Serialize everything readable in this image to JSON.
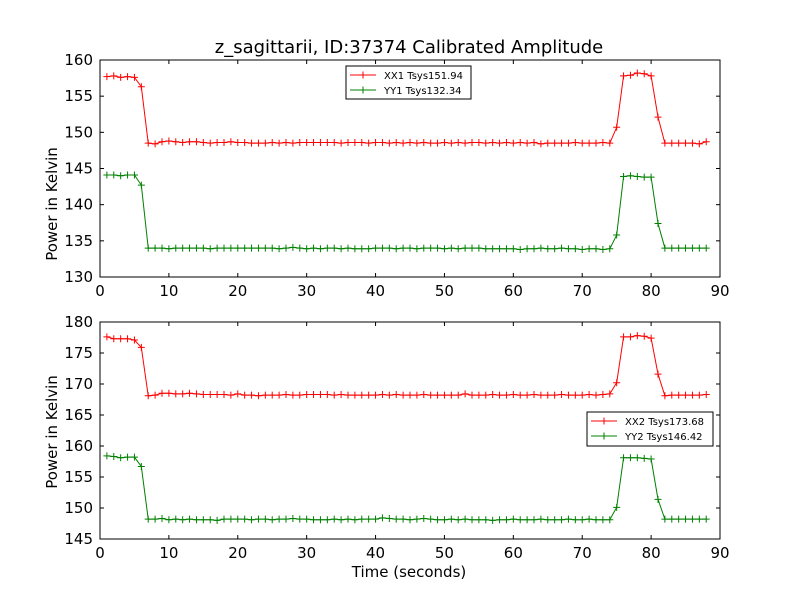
{
  "chart_data": [
    {
      "type": "line",
      "title": "z_sagittarii, ID:37374 Calibrated Amplitude",
      "xlabel": "",
      "ylabel": "Power in Kelvin",
      "xlim": [
        0,
        90
      ],
      "ylim": [
        130,
        160
      ],
      "xticks": [
        0,
        10,
        20,
        30,
        40,
        50,
        60,
        70,
        80,
        90
      ],
      "yticks": [
        130,
        135,
        140,
        145,
        150,
        155,
        160
      ],
      "legend_position": "upper-center",
      "x": [
        1,
        2,
        3,
        4,
        5,
        6,
        7,
        8,
        9,
        10,
        11,
        12,
        13,
        14,
        15,
        16,
        17,
        18,
        19,
        20,
        21,
        22,
        23,
        24,
        25,
        26,
        27,
        28,
        29,
        30,
        31,
        32,
        33,
        34,
        35,
        36,
        37,
        38,
        39,
        40,
        41,
        42,
        43,
        44,
        45,
        46,
        47,
        48,
        49,
        50,
        51,
        52,
        53,
        54,
        55,
        56,
        57,
        58,
        59,
        60,
        61,
        62,
        63,
        64,
        65,
        66,
        67,
        68,
        69,
        70,
        71,
        72,
        73,
        74,
        75,
        76,
        77,
        78,
        79,
        80,
        81,
        82,
        83,
        84,
        85,
        86,
        87,
        88
      ],
      "series": [
        {
          "name": "XX1 Tsys151.94",
          "color": "#ff0000",
          "values": [
            157.7,
            157.8,
            157.6,
            157.7,
            157.6,
            156.3,
            148.5,
            148.4,
            148.7,
            148.8,
            148.7,
            148.6,
            148.7,
            148.7,
            148.6,
            148.5,
            148.6,
            148.6,
            148.7,
            148.6,
            148.6,
            148.5,
            148.5,
            148.5,
            148.6,
            148.5,
            148.6,
            148.5,
            148.6,
            148.6,
            148.6,
            148.6,
            148.6,
            148.6,
            148.5,
            148.6,
            148.6,
            148.6,
            148.5,
            148.6,
            148.6,
            148.5,
            148.6,
            148.5,
            148.6,
            148.5,
            148.6,
            148.5,
            148.5,
            148.6,
            148.5,
            148.6,
            148.5,
            148.6,
            148.6,
            148.5,
            148.6,
            148.5,
            148.6,
            148.5,
            148.6,
            148.5,
            148.6,
            148.4,
            148.5,
            148.5,
            148.5,
            148.5,
            148.6,
            148.5,
            148.5,
            148.5,
            148.6,
            148.5,
            150.7,
            157.8,
            157.9,
            158.2,
            158.1,
            157.8,
            152.1,
            148.5,
            148.5,
            148.5,
            148.5,
            148.5,
            148.4,
            148.7
          ]
        },
        {
          "name": "YY1 Tsys132.34",
          "color": "#008000",
          "values": [
            144.1,
            144.1,
            144.0,
            144.1,
            144.1,
            142.7,
            134.0,
            134.0,
            134.0,
            133.9,
            134.0,
            134.0,
            134.0,
            134.0,
            134.0,
            133.9,
            134.0,
            134.0,
            134.0,
            134.0,
            134.0,
            134.0,
            134.0,
            134.0,
            134.0,
            133.9,
            134.0,
            134.1,
            134.0,
            133.9,
            134.0,
            133.9,
            134.0,
            134.0,
            133.9,
            134.0,
            133.9,
            133.9,
            133.9,
            134.0,
            134.0,
            134.0,
            133.9,
            134.0,
            134.0,
            133.9,
            134.0,
            134.0,
            134.0,
            133.9,
            134.0,
            133.9,
            134.0,
            134.0,
            134.0,
            133.9,
            133.9,
            133.9,
            133.9,
            133.9,
            133.8,
            133.9,
            133.9,
            134.0,
            133.9,
            133.9,
            134.0,
            133.9,
            133.9,
            133.8,
            133.9,
            133.9,
            133.8,
            133.9,
            135.8,
            143.9,
            144.0,
            143.9,
            143.8,
            143.8,
            137.4,
            134.0,
            134.0,
            134.0,
            134.0,
            134.0,
            134.0,
            134.0
          ]
        }
      ]
    },
    {
      "type": "line",
      "title": "",
      "xlabel": "Time (seconds)",
      "ylabel": "Power in Kelvin",
      "xlim": [
        0,
        90
      ],
      "ylim": [
        145,
        180
      ],
      "xticks": [
        0,
        10,
        20,
        30,
        40,
        50,
        60,
        70,
        80,
        90
      ],
      "yticks": [
        145,
        150,
        155,
        160,
        165,
        170,
        175,
        180
      ],
      "legend_position": "center-right",
      "x": [
        1,
        2,
        3,
        4,
        5,
        6,
        7,
        8,
        9,
        10,
        11,
        12,
        13,
        14,
        15,
        16,
        17,
        18,
        19,
        20,
        21,
        22,
        23,
        24,
        25,
        26,
        27,
        28,
        29,
        30,
        31,
        32,
        33,
        34,
        35,
        36,
        37,
        38,
        39,
        40,
        41,
        42,
        43,
        44,
        45,
        46,
        47,
        48,
        49,
        50,
        51,
        52,
        53,
        54,
        55,
        56,
        57,
        58,
        59,
        60,
        61,
        62,
        63,
        64,
        65,
        66,
        67,
        68,
        69,
        70,
        71,
        72,
        73,
        74,
        75,
        76,
        77,
        78,
        79,
        80,
        81,
        82,
        83,
        84,
        85,
        86,
        87,
        88
      ],
      "series": [
        {
          "name": "XX2 Tsys173.68",
          "color": "#ff0000",
          "values": [
            177.6,
            177.3,
            177.3,
            177.3,
            177.1,
            175.9,
            168.1,
            168.2,
            168.5,
            168.5,
            168.4,
            168.4,
            168.5,
            168.4,
            168.3,
            168.3,
            168.3,
            168.3,
            168.2,
            168.4,
            168.2,
            168.2,
            168.1,
            168.2,
            168.2,
            168.2,
            168.3,
            168.2,
            168.2,
            168.3,
            168.3,
            168.3,
            168.3,
            168.2,
            168.3,
            168.2,
            168.2,
            168.2,
            168.2,
            168.2,
            168.3,
            168.2,
            168.3,
            168.2,
            168.2,
            168.2,
            168.3,
            168.2,
            168.2,
            168.2,
            168.2,
            168.2,
            168.4,
            168.2,
            168.2,
            168.2,
            168.3,
            168.2,
            168.2,
            168.3,
            168.2,
            168.2,
            168.3,
            168.2,
            168.2,
            168.2,
            168.3,
            168.2,
            168.2,
            168.2,
            168.3,
            168.2,
            168.3,
            168.4,
            170.2,
            177.6,
            177.6,
            177.8,
            177.7,
            177.4,
            171.6,
            168.1,
            168.2,
            168.2,
            168.2,
            168.2,
            168.2,
            168.3
          ]
        },
        {
          "name": "YY2 Tsys146.42",
          "color": "#008000",
          "values": [
            158.4,
            158.3,
            158.1,
            158.2,
            158.2,
            156.7,
            148.2,
            148.2,
            148.3,
            148.1,
            148.2,
            148.1,
            148.2,
            148.1,
            148.1,
            148.1,
            148.0,
            148.2,
            148.2,
            148.2,
            148.2,
            148.1,
            148.2,
            148.2,
            148.1,
            148.2,
            148.2,
            148.3,
            148.2,
            148.2,
            148.1,
            148.1,
            148.1,
            148.2,
            148.1,
            148.2,
            148.1,
            148.2,
            148.2,
            148.2,
            148.4,
            148.3,
            148.2,
            148.2,
            148.1,
            148.2,
            148.3,
            148.2,
            148.1,
            148.1,
            148.2,
            148.1,
            148.2,
            148.1,
            148.1,
            148.1,
            148.0,
            148.1,
            148.1,
            148.2,
            148.1,
            148.1,
            148.1,
            148.2,
            148.1,
            148.1,
            148.1,
            148.2,
            148.1,
            148.1,
            148.2,
            148.1,
            148.1,
            148.1,
            150.1,
            158.1,
            158.1,
            158.1,
            158.0,
            157.9,
            151.4,
            148.2,
            148.2,
            148.2,
            148.2,
            148.2,
            148.2,
            148.2
          ]
        }
      ]
    }
  ]
}
